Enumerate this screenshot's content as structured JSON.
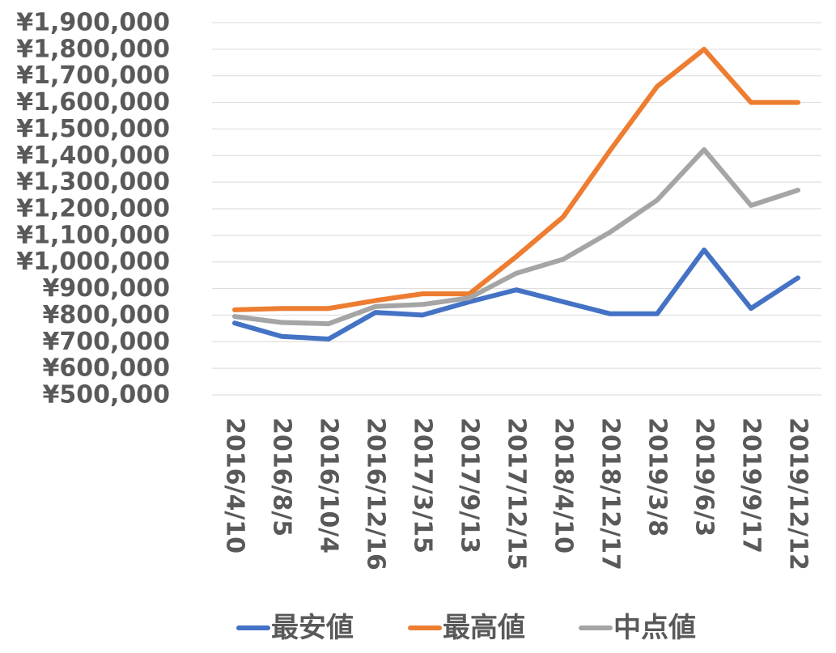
{
  "chart_data": {
    "type": "line",
    "title": "",
    "xlabel": "",
    "ylabel": "",
    "categories": [
      "2016/4/10",
      "2016/8/5",
      "2016/10/4",
      "2016/12/16",
      "2017/3/15",
      "2017/9/13",
      "2017/12/15",
      "2018/4/10",
      "2018/12/17",
      "2019/3/8",
      "2019/6/3",
      "2019/9/17",
      "2019/12/12"
    ],
    "ylim": [
      500000,
      1900000
    ],
    "y_ticks": [
      500000,
      600000,
      700000,
      800000,
      900000,
      1000000,
      1100000,
      1200000,
      1300000,
      1400000,
      1500000,
      1600000,
      1700000,
      1800000,
      1900000
    ],
    "y_tick_labels": [
      "¥500,000",
      "¥600,000",
      "¥700,000",
      "¥800,000",
      "¥900,000",
      "¥1,000,000",
      "¥1,100,000",
      "¥1,200,000",
      "¥1,300,000",
      "¥1,400,000",
      "¥1,500,000",
      "¥1,600,000",
      "¥1,700,000",
      "¥1,800,000",
      "¥1,900,000"
    ],
    "grid": true,
    "legend_position": "bottom",
    "series": [
      {
        "name": "最安値",
        "color": "#4472c4",
        "values": [
          770000,
          720000,
          710000,
          810000,
          800000,
          850000,
          895000,
          850000,
          805000,
          805000,
          1045000,
          825000,
          940000
        ]
      },
      {
        "name": "最高値",
        "color": "#ed7d31",
        "values": [
          820000,
          825000,
          825000,
          855000,
          880000,
          880000,
          1020000,
          1170000,
          1420000,
          1660000,
          1800000,
          1600000,
          1600000
        ]
      },
      {
        "name": "中点値",
        "color": "#a5a5a5",
        "values": [
          795000,
          772500,
          767500,
          832500,
          840000,
          865000,
          957500,
          1010000,
          1112500,
          1232500,
          1422500,
          1212500,
          1270000
        ]
      }
    ]
  }
}
